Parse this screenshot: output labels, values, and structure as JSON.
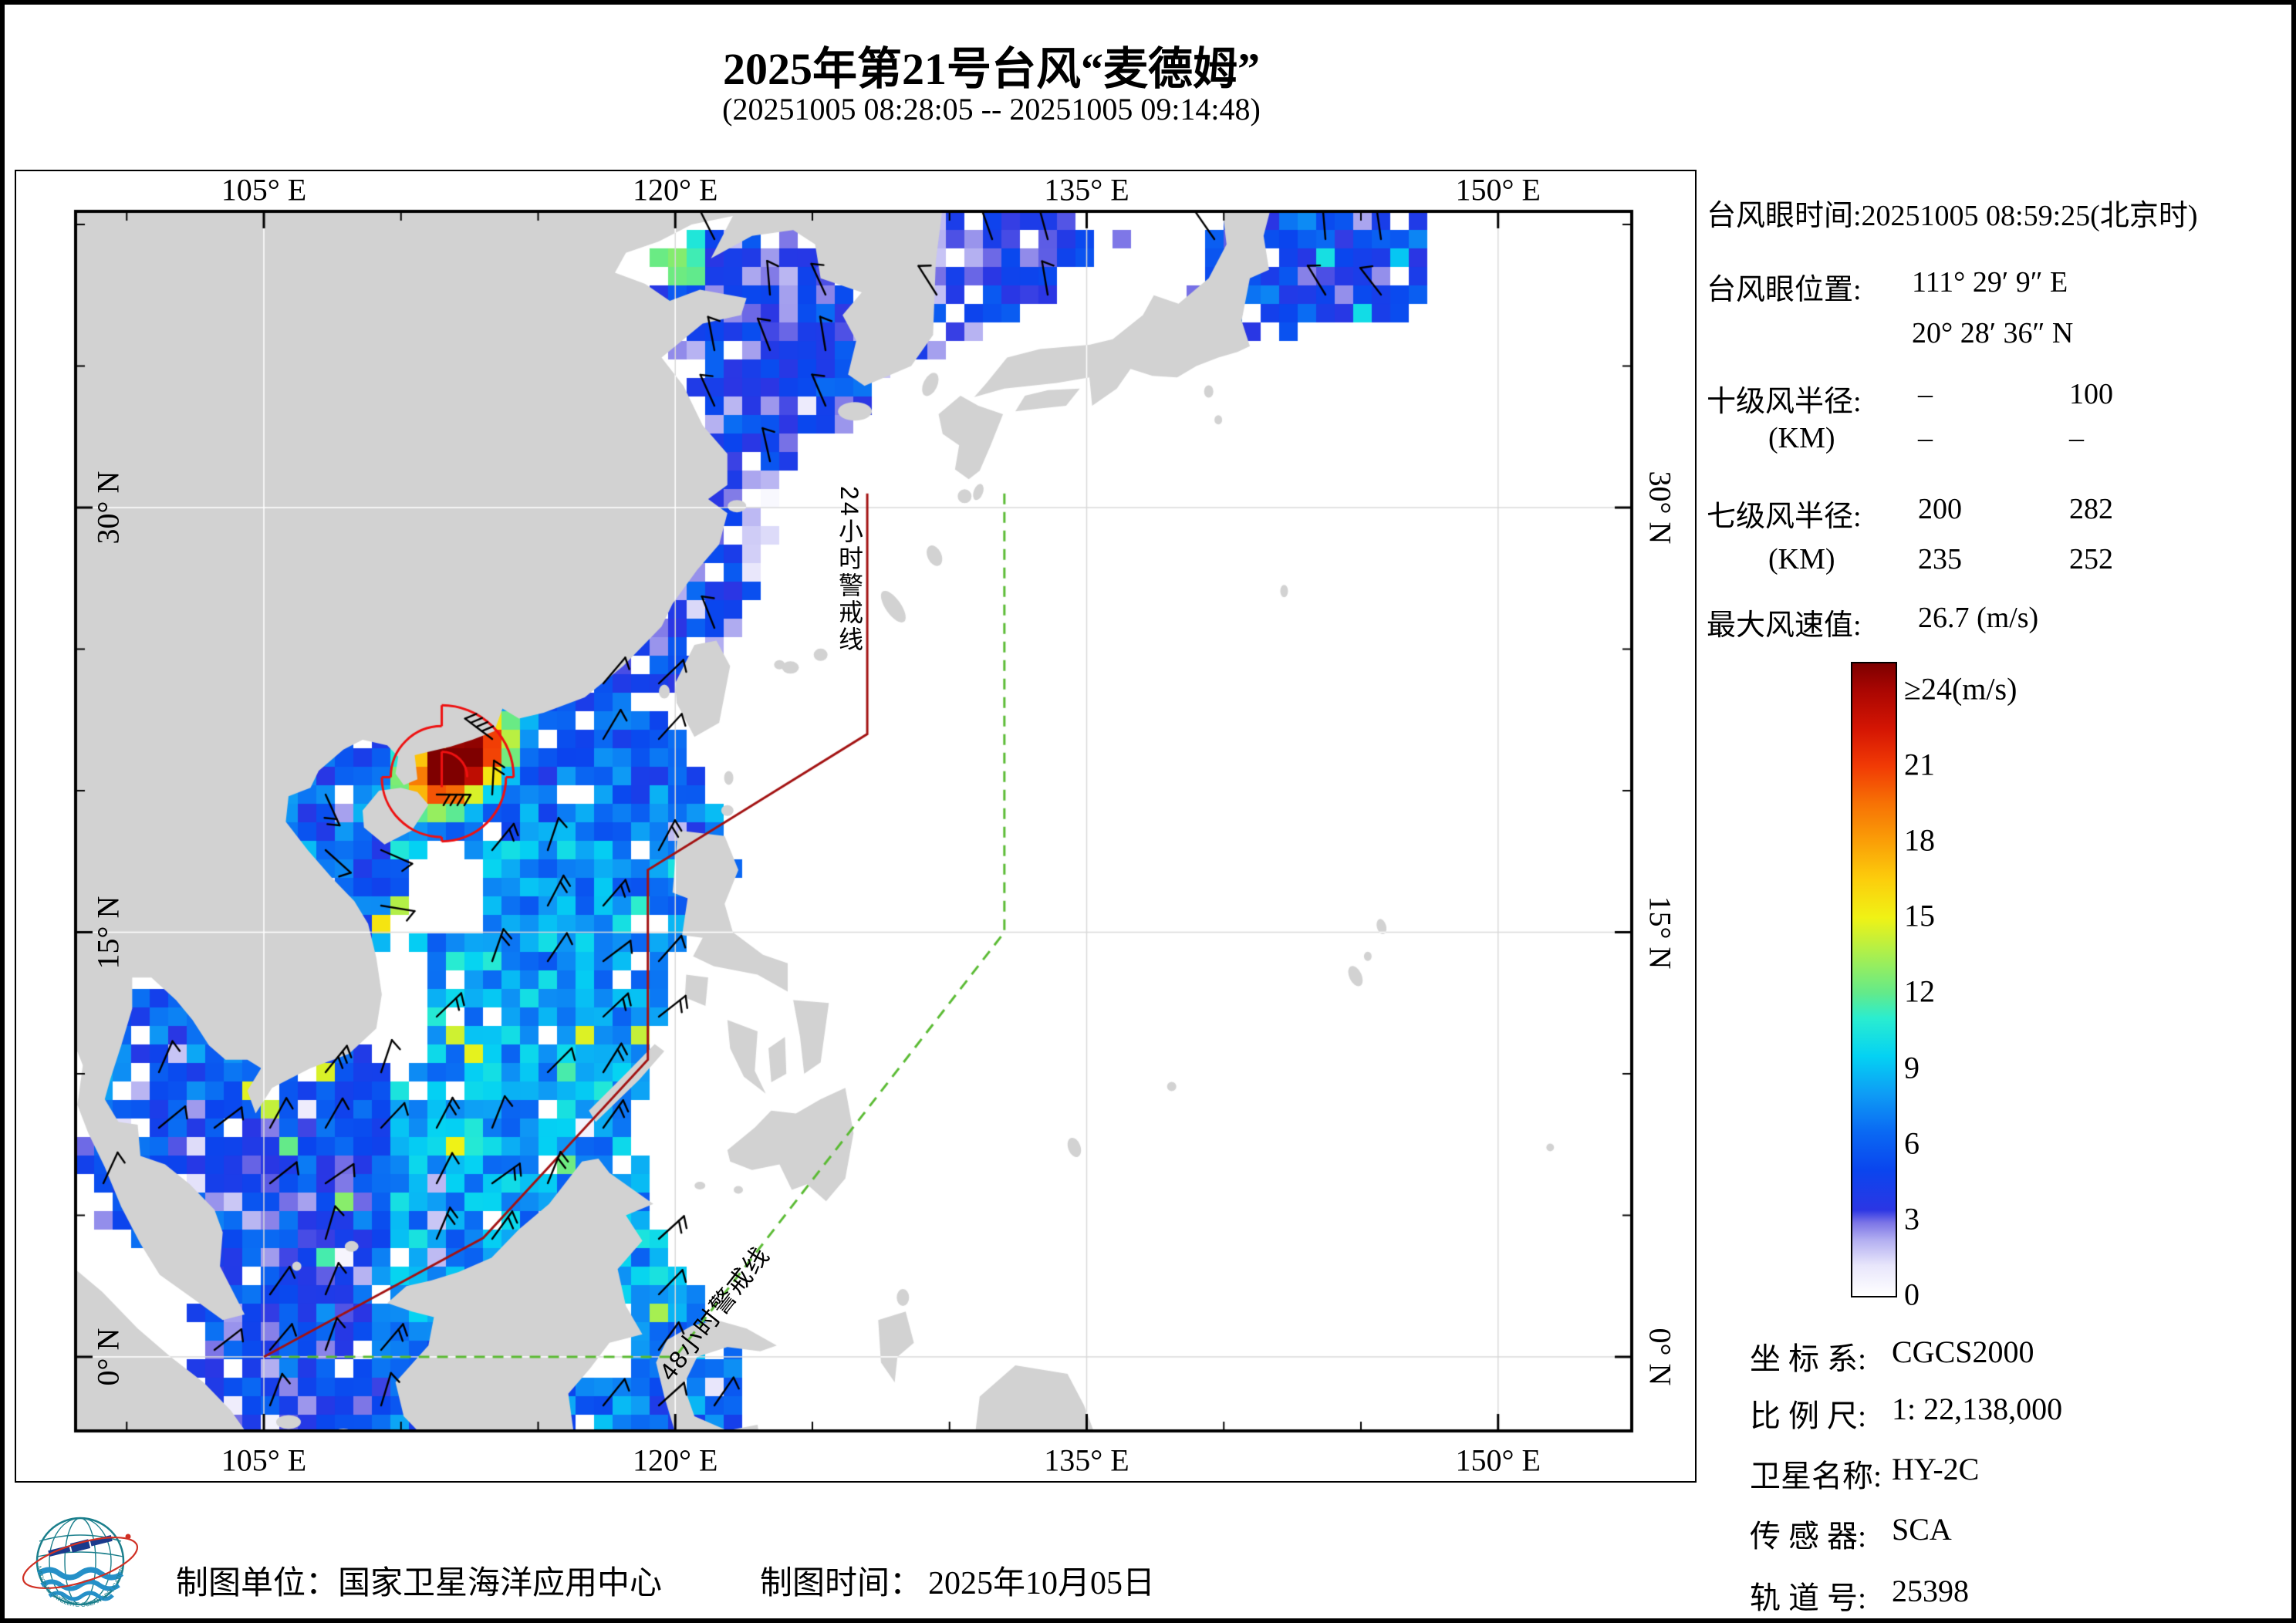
{
  "title": "2025年第21号台风“麦德姆”",
  "subtitle": "(20251005 08:28:05 -- 20251005 09:14:48)",
  "map": {
    "x_ticks": [
      {
        "label": "105° E",
        "lon": 105
      },
      {
        "label": "120° E",
        "lon": 120
      },
      {
        "label": "135° E",
        "lon": 135
      },
      {
        "label": "150° E",
        "lon": 150
      }
    ],
    "y_ticks": [
      {
        "label": "30° N",
        "lat": 30
      },
      {
        "label": "15° N",
        "lat": 15
      },
      {
        "label": "0° N",
        "lat": 0
      }
    ],
    "warning_line_24h": {
      "label": "24小时警戒线",
      "color": "#a31212",
      "points": [
        [
          127,
          30.5
        ],
        [
          127,
          22
        ],
        [
          119,
          17.2
        ],
        [
          119,
          10.5
        ],
        [
          113,
          4.2
        ],
        [
          105,
          0
        ]
      ]
    },
    "warning_line_48h": {
      "label": "48小时警戒线",
      "color": "#5abb33",
      "points": [
        [
          132,
          30.5
        ],
        [
          132,
          15
        ],
        [
          120,
          0
        ],
        [
          105,
          0
        ]
      ]
    },
    "land_color": "#d2d2d2",
    "grid_color": "#d9d9d9"
  },
  "info": {
    "eye_time": "台风眼时间:20251005 08:59:25(北京时)",
    "eye_pos_label": "台风眼位置:",
    "eye_lon": "111° 29′ 9″ E",
    "eye_lat": "20° 28′ 36″ N",
    "r10_label": "十级风半径:",
    "r10_unit": "(KM)",
    "r10": [
      [
        "–",
        "100"
      ],
      [
        "–",
        "–"
      ]
    ],
    "r7_label": "七级风半径:",
    "r7_unit": "(KM)",
    "r7": [
      [
        "200",
        "282"
      ],
      [
        "235",
        "252"
      ]
    ],
    "vmax_label": "最大风速值:",
    "vmax_value": "26.7 (m/s)"
  },
  "colorbar": {
    "top_label": "≥24(m/s)",
    "ticks": [
      "21",
      "18",
      "15",
      "12",
      "9",
      "6",
      "3",
      "0"
    ],
    "stops": [
      [
        0,
        "#ffffff"
      ],
      [
        1.2,
        "#e8e6fb"
      ],
      [
        2.2,
        "#b3aff1"
      ],
      [
        2.9,
        "#7b74e6"
      ],
      [
        3.4,
        "#2b36e4"
      ],
      [
        5,
        "#0a45ee"
      ],
      [
        6.5,
        "#0a69f3"
      ],
      [
        8,
        "#0e9cf5"
      ],
      [
        9.5,
        "#04d2f3"
      ],
      [
        11,
        "#2aedd0"
      ],
      [
        12,
        "#63ea8a"
      ],
      [
        13.5,
        "#a8ef50"
      ],
      [
        15,
        "#f0f215"
      ],
      [
        16.5,
        "#fcce0c"
      ],
      [
        18,
        "#fa9f07"
      ],
      [
        19.5,
        "#f77205"
      ],
      [
        21,
        "#f13a05"
      ],
      [
        22.5,
        "#d41503"
      ],
      [
        24,
        "#aa0602"
      ],
      [
        26.5,
        "#7d0000"
      ]
    ]
  },
  "meta": {
    "rows": [
      {
        "label": "坐 标 系:",
        "value": "CGCS2000"
      },
      {
        "label": "比 例 尺:",
        "value": "1: 22,138,000"
      },
      {
        "label": "卫星名称:",
        "value": "HY-2C"
      },
      {
        "label": "传 感 器:",
        "value": "SCA"
      },
      {
        "label": "轨 道 号:",
        "value": "25398"
      }
    ]
  },
  "footer": {
    "org": "制图单位：国家卫星海洋应用中心",
    "time_label": "制图时间：",
    "time_value": "2025年10月05日",
    "logo_ring_text": "NATIONAL SATELLITE OCEAN APPLICATION SERVICE"
  },
  "typhoon": {
    "eye_lon_deg": 111.486,
    "eye_lat_deg": 20.477,
    "r7_quadrants_km": [
      282,
      252,
      235,
      200
    ],
    "r10_ne_km": 100,
    "max_wind_ms": 26.7
  },
  "chart_data": {
    "type": "heatmap",
    "title": "2025年第21号台风“麦德姆”",
    "time_range": "20251005 08:28:05 – 20251005 09:14:48",
    "x_axis": {
      "ticks": [
        "105° E",
        "120° E",
        "135° E",
        "150° E"
      ],
      "range_deg": [
        98.1,
        154.9
      ]
    },
    "y_axis": {
      "ticks": [
        "30° N",
        "15° N",
        "0° N"
      ],
      "range_deg": [
        -2.6,
        40.5
      ]
    },
    "colorbar": {
      "units": "m/s",
      "min": 0,
      "max": 24,
      "tick_step": 3,
      "top_label": "≥24(m/s)"
    },
    "typhoon_eye": {
      "time_beijing": "20251005 08:59:25",
      "lon": "111°29′9″E",
      "lat": "20°28′36″N",
      "max_wind_ms": 26.7
    },
    "wind_radii_km": {
      "level10_display": [
        [
          "–",
          "100"
        ],
        [
          "–",
          "–"
        ]
      ],
      "level7_values": [
        [
          "200",
          "282"
        ],
        [
          "235",
          "252"
        ]
      ]
    },
    "warning_lines": {
      "h24": [
        [
          127,
          30.5
        ],
        [
          127,
          22
        ],
        [
          119,
          17.2
        ],
        [
          119,
          10.5
        ],
        [
          113,
          4.2
        ],
        [
          105,
          0
        ]
      ],
      "h48": [
        [
          132,
          30.5
        ],
        [
          132,
          15
        ],
        [
          120,
          0
        ],
        [
          105,
          0
        ]
      ]
    },
    "satellite": {
      "name": "HY-2C",
      "sensor": "SCA",
      "orbit": "25398",
      "coord_system": "CGCS2000",
      "scale": "1: 22,138,000"
    }
  }
}
